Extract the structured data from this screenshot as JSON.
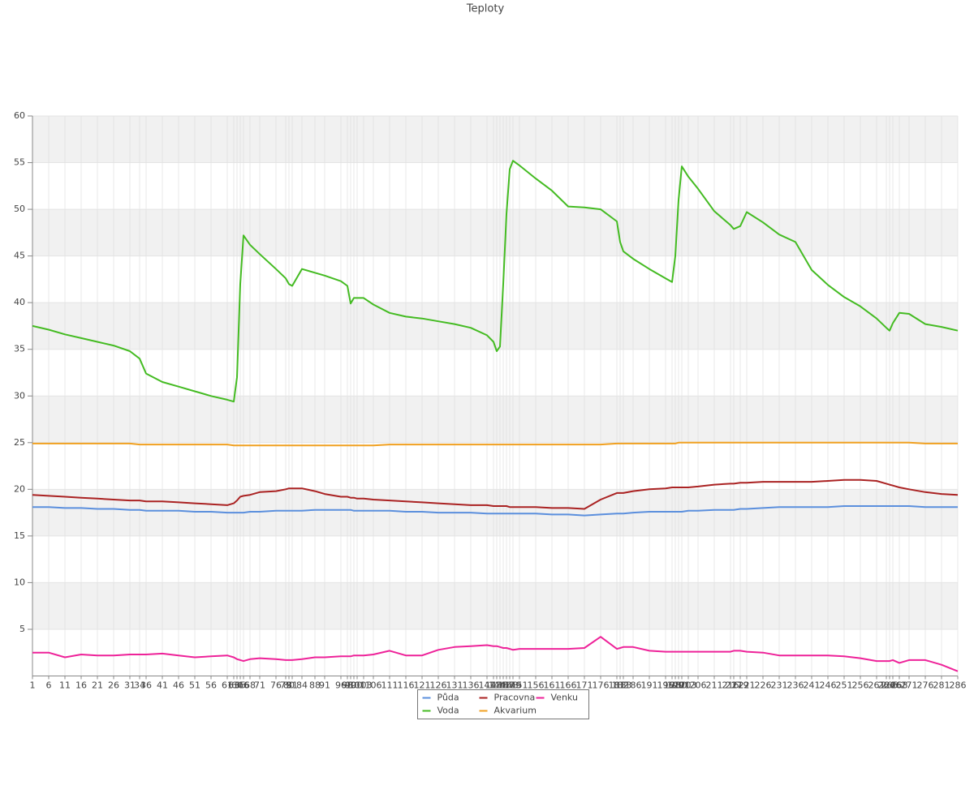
{
  "chart_data": {
    "type": "line",
    "title": "Teploty",
    "x": [
      1,
      6,
      11,
      16,
      21,
      26,
      31,
      34,
      36,
      41,
      46,
      51,
      56,
      61,
      63,
      64,
      65,
      66,
      68,
      71,
      76,
      79,
      80,
      81,
      84,
      88,
      91,
      96,
      98,
      99,
      100,
      101,
      103,
      106,
      111,
      116,
      121,
      126,
      131,
      136,
      141,
      143,
      144,
      145,
      146,
      147,
      148,
      149,
      151,
      156,
      161,
      166,
      171,
      176,
      181,
      182,
      183,
      186,
      191,
      196,
      198,
      199,
      200,
      201,
      203,
      206,
      211,
      216,
      217,
      219,
      221,
      226,
      231,
      236,
      241,
      246,
      251,
      256,
      261,
      264,
      265,
      266,
      268,
      271,
      276,
      281,
      286
    ],
    "xlim": [
      1,
      286
    ],
    "ylim": [
      0,
      60
    ],
    "yticks": [
      5,
      10,
      15,
      20,
      25,
      30,
      35,
      40,
      45,
      50,
      55,
      60
    ],
    "grid": true,
    "legend": "bottom",
    "series": [
      {
        "name": "Půda",
        "color": "#5b8fdd",
        "values": [
          18.1,
          18.1,
          18.0,
          18.0,
          17.9,
          17.9,
          17.8,
          17.8,
          17.7,
          17.7,
          17.7,
          17.6,
          17.6,
          17.5,
          17.5,
          17.5,
          17.5,
          17.5,
          17.6,
          17.6,
          17.7,
          17.7,
          17.7,
          17.7,
          17.7,
          17.8,
          17.8,
          17.8,
          17.8,
          17.8,
          17.7,
          17.7,
          17.7,
          17.7,
          17.7,
          17.6,
          17.6,
          17.5,
          17.5,
          17.5,
          17.4,
          17.4,
          17.4,
          17.4,
          17.4,
          17.4,
          17.4,
          17.4,
          17.4,
          17.4,
          17.3,
          17.3,
          17.2,
          17.3,
          17.4,
          17.4,
          17.4,
          17.5,
          17.6,
          17.6,
          17.6,
          17.6,
          17.6,
          17.6,
          17.7,
          17.7,
          17.8,
          17.8,
          17.8,
          17.9,
          17.9,
          18.0,
          18.1,
          18.1,
          18.1,
          18.1,
          18.2,
          18.2,
          18.2,
          18.2,
          18.2,
          18.2,
          18.2,
          18.2,
          18.1,
          18.1,
          18.1
        ]
      },
      {
        "name": "Voda",
        "color": "#44bb22",
        "values": [
          37.5,
          37.1,
          36.6,
          36.2,
          35.8,
          35.4,
          34.8,
          34.0,
          32.4,
          31.5,
          31.0,
          30.5,
          30.0,
          29.6,
          29.4,
          32,
          42,
          47.2,
          46.2,
          45.2,
          43.6,
          42.6,
          42.0,
          41.8,
          43.6,
          43.2,
          42.9,
          42.3,
          41.8,
          39.9,
          40.5,
          40.5,
          40.5,
          39.8,
          38.9,
          38.5,
          38.3,
          38.0,
          37.7,
          37.3,
          36.5,
          35.8,
          34.8,
          35.3,
          42,
          49.5,
          54.3,
          55.2,
          54.7,
          53.3,
          52,
          50.3,
          50.2,
          50.0,
          48.7,
          46.5,
          45.5,
          44.7,
          43.6,
          42.6,
          42.2,
          45,
          51,
          54.6,
          53.5,
          52.2,
          49.8,
          48.3,
          47.9,
          48.2,
          49.7,
          48.6,
          47.3,
          46.5,
          43.5,
          41.9,
          40.6,
          39.6,
          38.3,
          37.3,
          37.0,
          37.8,
          38.9,
          38.8,
          37.7,
          37.4,
          37.0
        ]
      },
      {
        "name": "Pracovna",
        "color": "#aa2222",
        "values": [
          19.4,
          19.3,
          19.2,
          19.1,
          19.0,
          18.9,
          18.8,
          18.8,
          18.7,
          18.7,
          18.6,
          18.5,
          18.4,
          18.3,
          18.5,
          18.8,
          19.2,
          19.3,
          19.4,
          19.7,
          19.8,
          20.0,
          20.1,
          20.1,
          20.1,
          19.8,
          19.5,
          19.2,
          19.2,
          19.1,
          19.1,
          19.0,
          19.0,
          18.9,
          18.8,
          18.7,
          18.6,
          18.5,
          18.4,
          18.3,
          18.3,
          18.2,
          18.2,
          18.2,
          18.2,
          18.2,
          18.1,
          18.1,
          18.1,
          18.1,
          18.0,
          18.0,
          17.9,
          18.9,
          19.6,
          19.6,
          19.6,
          19.8,
          20.0,
          20.1,
          20.2,
          20.2,
          20.2,
          20.2,
          20.2,
          20.3,
          20.5,
          20.6,
          20.6,
          20.7,
          20.7,
          20.8,
          20.8,
          20.8,
          20.8,
          20.9,
          21.0,
          21.0,
          20.9,
          20.6,
          20.5,
          20.4,
          20.2,
          20.0,
          19.7,
          19.5,
          19.4
        ]
      },
      {
        "name": "Akvarium",
        "color": "#f0a020",
        "values": [
          24.9,
          24.9,
          24.9,
          24.9,
          24.9,
          24.9,
          24.9,
          24.8,
          24.8,
          24.8,
          24.8,
          24.8,
          24.8,
          24.8,
          24.7,
          24.7,
          24.7,
          24.7,
          24.7,
          24.7,
          24.7,
          24.7,
          24.7,
          24.7,
          24.7,
          24.7,
          24.7,
          24.7,
          24.7,
          24.7,
          24.7,
          24.7,
          24.7,
          24.7,
          24.8,
          24.8,
          24.8,
          24.8,
          24.8,
          24.8,
          24.8,
          24.8,
          24.8,
          24.8,
          24.8,
          24.8,
          24.8,
          24.8,
          24.8,
          24.8,
          24.8,
          24.8,
          24.8,
          24.8,
          24.9,
          24.9,
          24.9,
          24.9,
          24.9,
          24.9,
          24.9,
          24.9,
          25.0,
          25.0,
          25.0,
          25.0,
          25.0,
          25.0,
          25.0,
          25.0,
          25.0,
          25.0,
          25.0,
          25.0,
          25.0,
          25.0,
          25.0,
          25.0,
          25.0,
          25.0,
          25.0,
          25.0,
          25.0,
          25.0,
          24.9,
          24.9,
          24.9
        ]
      },
      {
        "name": "Venku",
        "color": "#ee2299",
        "values": [
          2.5,
          2.5,
          2.0,
          2.3,
          2.2,
          2.2,
          2.3,
          2.3,
          2.3,
          2.4,
          2.2,
          2.0,
          2.1,
          2.2,
          2.0,
          1.8,
          1.7,
          1.6,
          1.8,
          1.9,
          1.8,
          1.7,
          1.7,
          1.7,
          1.8,
          2.0,
          2.0,
          2.1,
          2.1,
          2.1,
          2.2,
          2.2,
          2.2,
          2.3,
          2.7,
          2.2,
          2.2,
          2.8,
          3.1,
          3.2,
          3.3,
          3.2,
          3.2,
          3.1,
          3.0,
          3.0,
          2.9,
          2.8,
          2.9,
          2.9,
          2.9,
          2.9,
          3.0,
          4.2,
          2.9,
          3.0,
          3.1,
          3.1,
          2.7,
          2.6,
          2.6,
          2.6,
          2.6,
          2.6,
          2.6,
          2.6,
          2.6,
          2.6,
          2.7,
          2.7,
          2.6,
          2.5,
          2.2,
          2.2,
          2.2,
          2.2,
          2.1,
          1.9,
          1.6,
          1.6,
          1.6,
          1.7,
          1.4,
          1.7,
          1.7,
          1.2,
          0.5
        ]
      }
    ]
  }
}
